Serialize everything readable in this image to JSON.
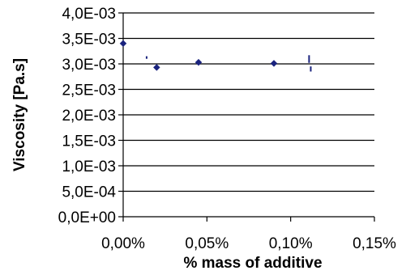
{
  "chart_data": {
    "type": "scatter",
    "title": "",
    "xlabel": "% mass of additive",
    "ylabel": "Viscosity  [Pa.s]",
    "xlim": [
      0,
      0.0015
    ],
    "ylim": [
      0,
      0.004
    ],
    "x_ticks": [
      0,
      0.0005,
      0.001,
      0.0015
    ],
    "x_tick_labels": [
      "0,00%",
      "0,05%",
      "0,10%",
      "0,15%"
    ],
    "y_ticks": [
      0,
      0.0005,
      0.001,
      0.0015,
      0.002,
      0.0025,
      0.003,
      0.0035,
      0.004
    ],
    "y_tick_labels": [
      "0,0E+00",
      "5,0E-04",
      "1,0E-03",
      "1,5E-03",
      "2,0E-03",
      "2,5E-03",
      "3,0E-03",
      "3,5E-03",
      "4,0E-03"
    ],
    "grid": "horizontal",
    "legend": "none",
    "colors": {
      "marker": "#1a237e",
      "grid": "#000000",
      "axis": "#000000"
    },
    "series": [
      {
        "x": [
          0,
          0.0002,
          0.00045,
          0.0009
        ],
        "y": [
          0.0034,
          0.00293,
          0.00303,
          0.00301
        ],
        "y_error": [
          3e-05,
          2e-05,
          5e-05,
          3e-05
        ]
      }
    ]
  }
}
